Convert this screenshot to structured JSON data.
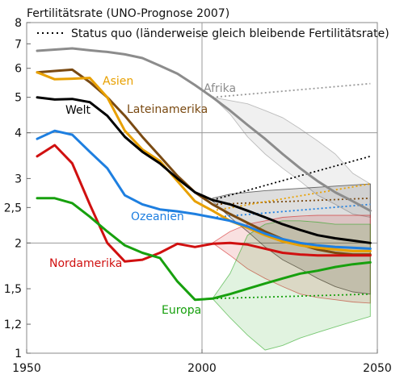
{
  "chart_data": {
    "type": "line",
    "title": "Fertilitätsrate (UNO-Prognose 2007)",
    "xlabel": "",
    "ylabel": "",
    "x_ticks": [
      1950,
      2000,
      2050
    ],
    "y_ticks": [
      1,
      1.2,
      1.5,
      2,
      2.5,
      3,
      4,
      5,
      6,
      7,
      8
    ],
    "y_tick_labels": [
      "1",
      "1,2",
      "1,5",
      "2",
      "2,5",
      "3",
      "4",
      "5",
      "6",
      "7",
      "8"
    ],
    "xlim": [
      1950,
      2050
    ],
    "ylim": [
      1,
      8
    ],
    "y_scale": "log",
    "grid": "major lines at 2000, 2 and 4",
    "legend": {
      "label": "Status quo (länderweise gleich bleibende Fertilitätsrate)",
      "position": "top"
    },
    "series": [
      {
        "name": "Afrika",
        "color": "#8c8c8c",
        "x": [
          1953,
          1958,
          1963,
          1968,
          1973,
          1978,
          1983,
          1988,
          1993,
          1998,
          2003,
          2008,
          2013,
          2018,
          2023,
          2028,
          2033,
          2038,
          2043,
          2048
        ],
        "y": [
          6.7,
          6.75,
          6.8,
          6.72,
          6.65,
          6.55,
          6.4,
          6.1,
          5.8,
          5.4,
          5.0,
          4.6,
          4.2,
          3.85,
          3.5,
          3.2,
          2.95,
          2.75,
          2.6,
          2.45
        ],
        "high": [
          null,
          null,
          null,
          null,
          null,
          null,
          null,
          null,
          null,
          null,
          5.0,
          4.9,
          4.8,
          4.6,
          4.4,
          4.1,
          3.8,
          3.5,
          3.1,
          2.9
        ],
        "low": [
          null,
          null,
          null,
          null,
          null,
          null,
          null,
          null,
          null,
          null,
          5.0,
          4.5,
          3.9,
          3.5,
          3.2,
          2.95,
          2.7,
          2.55,
          2.4,
          2.35
        ],
        "status_quo": [
          [
            2003,
            5.0
          ],
          [
            2048,
            5.45
          ]
        ]
      },
      {
        "name": "Lateinamerika",
        "color": "#7a4a12",
        "x": [
          1953,
          1958,
          1963,
          1968,
          1973,
          1978,
          1983,
          1988,
          1993,
          1998,
          2003,
          2008,
          2013,
          2018,
          2023,
          2028,
          2033,
          2038,
          2043,
          2048
        ],
        "y": [
          5.85,
          5.9,
          5.95,
          5.5,
          5.0,
          4.45,
          3.9,
          3.45,
          3.05,
          2.75,
          2.55,
          2.4,
          2.27,
          2.15,
          2.05,
          1.98,
          1.92,
          1.88,
          1.86,
          1.86
        ],
        "status_quo": [
          [
            2003,
            2.55
          ],
          [
            2048,
            2.65
          ]
        ]
      },
      {
        "name": "Asien",
        "color": "#e8a000",
        "x": [
          1953,
          1958,
          1963,
          1968,
          1973,
          1978,
          1983,
          1988,
          1993,
          1998,
          2003,
          2008,
          2013,
          2018,
          2023,
          2028,
          2033,
          2038,
          2043,
          2048
        ],
        "y": [
          5.85,
          5.6,
          5.62,
          5.65,
          5.0,
          4.05,
          3.6,
          3.35,
          2.95,
          2.6,
          2.45,
          2.3,
          2.2,
          2.1,
          2.02,
          1.97,
          1.94,
          1.92,
          1.9,
          1.9
        ],
        "status_quo": [
          [
            2003,
            2.45
          ],
          [
            2048,
            2.9
          ]
        ]
      },
      {
        "name": "Welt",
        "color": "#000000",
        "x": [
          1953,
          1958,
          1963,
          1968,
          1973,
          1978,
          1983,
          1988,
          1993,
          1998,
          2003,
          2008,
          2013,
          2018,
          2023,
          2028,
          2033,
          2038,
          2043,
          2048
        ],
        "y": [
          5.0,
          4.93,
          4.95,
          4.85,
          4.45,
          3.9,
          3.55,
          3.3,
          3.0,
          2.75,
          2.62,
          2.55,
          2.45,
          2.35,
          2.25,
          2.17,
          2.1,
          2.06,
          2.03,
          2.0
        ],
        "high": [
          null,
          null,
          null,
          null,
          null,
          null,
          null,
          null,
          null,
          null,
          2.65,
          2.72,
          2.75,
          2.78,
          2.8,
          2.82,
          2.84,
          2.86,
          2.88,
          2.9
        ],
        "low": [
          null,
          null,
          null,
          null,
          null,
          null,
          null,
          null,
          null,
          null,
          2.6,
          2.35,
          2.15,
          1.95,
          1.8,
          1.7,
          1.6,
          1.52,
          1.47,
          1.45
        ],
        "status_quo": [
          [
            2003,
            2.62
          ],
          [
            2048,
            3.45
          ]
        ]
      },
      {
        "name": "Ozeanien",
        "color": "#1e7fe0",
        "x": [
          1953,
          1958,
          1963,
          1968,
          1973,
          1978,
          1983,
          1988,
          1993,
          1998,
          2003,
          2008,
          2013,
          2018,
          2023,
          2028,
          2033,
          2038,
          2043,
          2048
        ],
        "y": [
          3.85,
          4.05,
          3.95,
          3.55,
          3.2,
          2.7,
          2.55,
          2.47,
          2.44,
          2.4,
          2.35,
          2.3,
          2.22,
          2.12,
          2.05,
          2.0,
          1.97,
          1.95,
          1.94,
          1.93
        ],
        "status_quo": [
          [
            2003,
            2.35
          ],
          [
            2048,
            2.55
          ]
        ]
      },
      {
        "name": "Nordamerika",
        "color": "#d01010",
        "x": [
          1953,
          1958,
          1963,
          1968,
          1973,
          1978,
          1983,
          1988,
          1993,
          1998,
          2003,
          2008,
          2013,
          2018,
          2023,
          2028,
          2033,
          2038,
          2043,
          2048
        ],
        "y": [
          3.45,
          3.7,
          3.3,
          2.55,
          2.0,
          1.78,
          1.8,
          1.88,
          1.99,
          1.95,
          1.99,
          2.0,
          1.98,
          1.93,
          1.88,
          1.86,
          1.85,
          1.85,
          1.85,
          1.85
        ],
        "high": [
          null,
          null,
          null,
          null,
          null,
          null,
          null,
          null,
          null,
          null,
          2.0,
          2.15,
          2.25,
          2.3,
          2.35,
          2.37,
          2.38,
          2.38,
          2.38,
          2.38
        ],
        "low": [
          null,
          null,
          null,
          null,
          null,
          null,
          null,
          null,
          null,
          null,
          2.0,
          1.85,
          1.7,
          1.6,
          1.52,
          1.45,
          1.42,
          1.4,
          1.38,
          1.37
        ]
      },
      {
        "name": "Europa",
        "color": "#17a00e",
        "x": [
          1953,
          1958,
          1963,
          1968,
          1973,
          1978,
          1983,
          1988,
          1993,
          1998,
          2003,
          2008,
          2013,
          2018,
          2023,
          2028,
          2033,
          2038,
          2043,
          2048
        ],
        "y": [
          2.65,
          2.65,
          2.57,
          2.36,
          2.15,
          1.97,
          1.88,
          1.82,
          1.57,
          1.4,
          1.41,
          1.45,
          1.5,
          1.55,
          1.6,
          1.65,
          1.68,
          1.72,
          1.75,
          1.77
        ],
        "high": [
          null,
          null,
          null,
          null,
          null,
          null,
          null,
          null,
          null,
          null,
          1.41,
          1.65,
          2.1,
          2.25,
          2.3,
          2.3,
          2.28,
          2.25,
          2.25,
          2.25
        ],
        "low": [
          null,
          null,
          null,
          null,
          null,
          null,
          null,
          null,
          null,
          null,
          1.41,
          1.25,
          1.12,
          1.02,
          1.05,
          1.1,
          1.14,
          1.18,
          1.22,
          1.26
        ],
        "status_quo": [
          [
            2003,
            1.41
          ],
          [
            2048,
            1.45
          ]
        ]
      }
    ]
  }
}
